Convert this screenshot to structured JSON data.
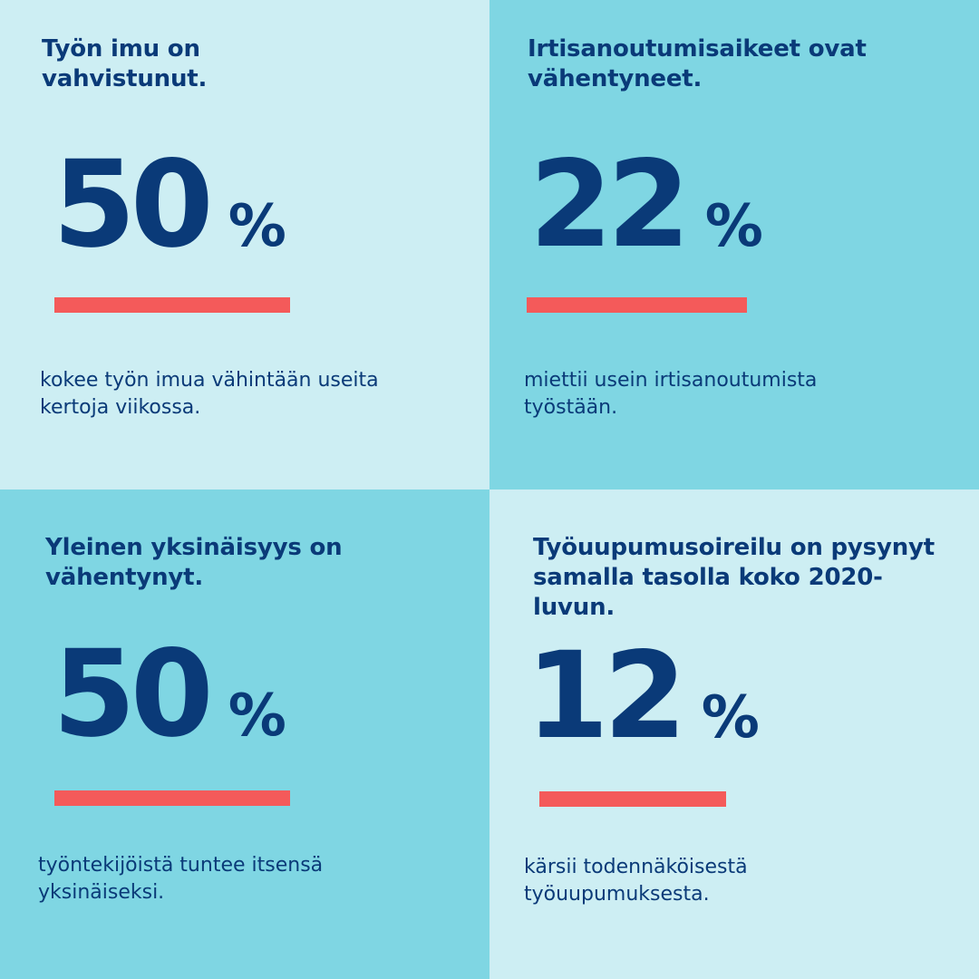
{
  "colors": {
    "navy": "#0a3a78",
    "tile_light": "#cdeef3",
    "tile_dark": "#7fd6e3",
    "accent_bar": "#f45a5a"
  },
  "tiles": [
    {
      "headline": "Työn imu on\nvahvistunut.",
      "value": "50",
      "unit": "%",
      "description": "kokee työn imua vähintään useita\nkertoja viikossa."
    },
    {
      "headline": "Irtisanoutumisaikeet ovat\nvähentyneet.",
      "value": "22",
      "unit": "%",
      "description": "miettii usein irtisanoutumista\ntyöstään."
    },
    {
      "headline": "Yleinen yksinäisyys on\nvähentynyt.",
      "value": "50",
      "unit": "%",
      "description": "työntekijöistä tuntee itsensä\nyksinäiseksi."
    },
    {
      "headline": "Työuupumusoireilu on pysynyt\nsamalla tasolla koko 2020-\nluvun.",
      "value": "12",
      "unit": "%",
      "description": "kärsii todennäköisestä\ntyöuupumuksesta."
    }
  ]
}
